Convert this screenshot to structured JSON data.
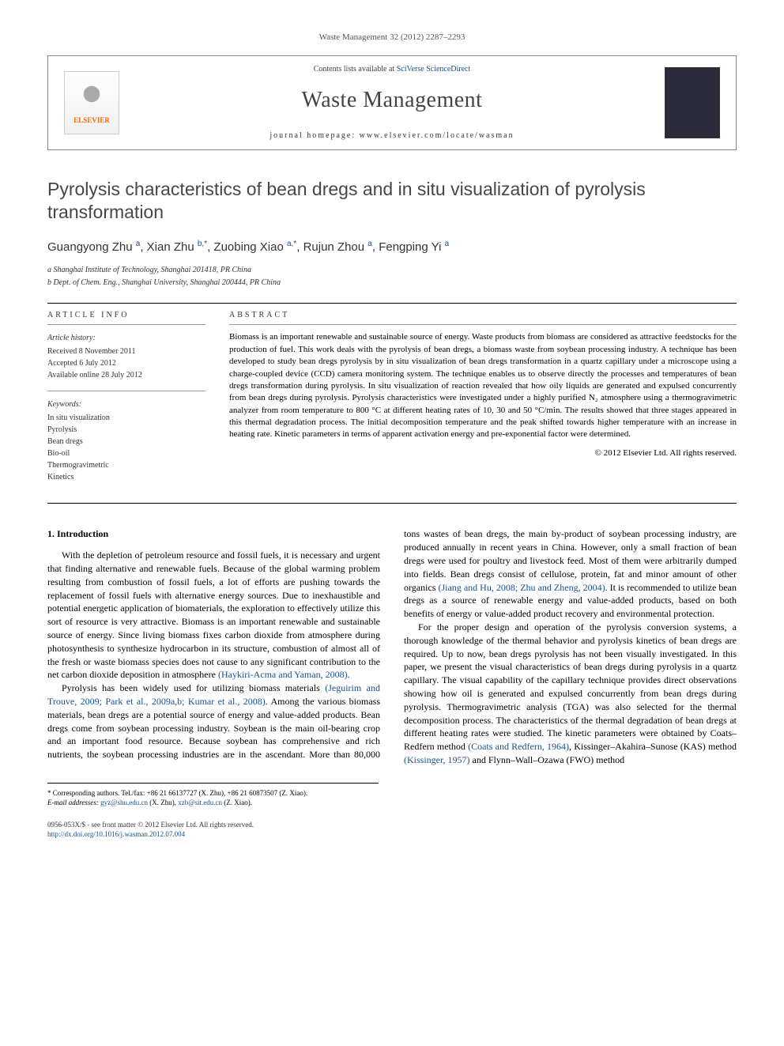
{
  "journal_ref": "Waste Management 32 (2012) 2287–2293",
  "header": {
    "publisher_name": "ELSEVIER",
    "contents_line_prefix": "Contents lists available at ",
    "contents_link": "SciVerse ScienceDirect",
    "journal_name": "Waste Management",
    "homepage_prefix": "journal homepage: ",
    "homepage_url": "www.elsevier.com/locate/wasman"
  },
  "title": "Pyrolysis characteristics of bean dregs and in situ visualization of pyrolysis transformation",
  "authors_html": "Guangyong Zhu <sup>a</sup>, Xian Zhu <sup>b,*</sup>, Zuobing Xiao <sup>a,*</sup>, Rujun Zhou <sup>a</sup>, Fengping Yi <sup>a</sup>",
  "affiliations": [
    "a Shanghai Institute of Technology, Shanghai 201418, PR China",
    "b Dept. of Chem. Eng., Shanghai University, Shanghai 200444, PR China"
  ],
  "article_info": {
    "heading": "ARTICLE INFO",
    "history_label": "Article history:",
    "history": [
      "Received 8 November 2011",
      "Accepted 6 July 2012",
      "Available online 28 July 2012"
    ],
    "keywords_label": "Keywords:",
    "keywords": [
      "In situ visualization",
      "Pyrolysis",
      "Bean dregs",
      "Bio-oil",
      "Thermogravimetric",
      "Kinetics"
    ]
  },
  "abstract": {
    "heading": "ABSTRACT",
    "text": "Biomass is an important renewable and sustainable source of energy. Waste products from biomass are considered as attractive feedstocks for the production of fuel. This work deals with the pyrolysis of bean dregs, a biomass waste from soybean processing industry. A technique has been developed to study bean dregs pyrolysis by in situ visualization of bean dregs transformation in a quartz capillary under a microscope using a charge-coupled device (CCD) camera monitoring system. The technique enables us to observe directly the processes and temperatures of bean dregs transformation during pyrolysis. In situ visualization of reaction revealed that how oily liquids are generated and expulsed concurrently from bean dregs during pyrolysis. Pyrolysis characteristics were investigated under a highly purified N₂ atmosphere using a thermogravimetric analyzer from room temperature to 800 °C at different heating rates of 10, 30 and 50 °C/min. The results showed that three stages appeared in this thermal degradation process. The initial decomposition temperature and the peak shifted towards higher temperature with an increase in heating rate. Kinetic parameters in terms of apparent activation energy and pre-exponential factor were determined.",
    "copyright": "© 2012 Elsevier Ltd. All rights reserved."
  },
  "body": {
    "section1_heading": "1. Introduction",
    "para1": "With the depletion of petroleum resource and fossil fuels, it is necessary and urgent that finding alternative and renewable fuels. Because of the global warming problem resulting from combustion of fossil fuels, a lot of efforts are pushing towards the replacement of fossil fuels with alternative energy sources. Due to inexhaustible and potential energetic application of biomaterials, the exploration to effectively utilize this sort of resource is very attractive. Biomass is an important renewable and sustainable source of energy. Since living biomass fixes carbon dioxide from atmosphere during photosynthesis to synthesize hydrocarbon in its structure, combustion of almost all of the fresh or waste biomass species does not cause to any significant contribution to the net carbon dioxide deposition in atmosphere ",
    "para1_cite": "(Haykiri-Acma and Yaman, 2008)",
    "para1_end": ".",
    "para2_a": "Pyrolysis has been widely used for utilizing biomass materials ",
    "para2_cite": "(Jeguirim and Trouve, 2009; Park et al., 2009a,b; Kumar et al., 2008)",
    "para2_b": ". Among the various biomass materials, bean dregs are a potential source of energy and value-added products. Bean dregs come from soybean processing industry. Soybean is the main oil-bearing crop and an important food resource. Because soybean has comprehensive and rich nutrients, the soybean processing industries are in the ascendant. More than 80,000 tons wastes of bean dregs, the main by-product of soybean processing industry, are produced annually in recent years in China. However, only a small fraction of bean dregs were used for poultry and livestock feed. Most of them were arbitrarily dumped into fields. Bean dregs consist of cellulose, protein, fat and minor amount of other organics ",
    "para2_cite2": "(Jiang and Hu, 2008; Zhu and Zheng, 2004)",
    "para2_c": ". It is recommended to utilize bean dregs as a source of renewable energy and value-added products, based on both benefits of energy or value-added product recovery and environmental protection.",
    "para3_a": "For the proper design and operation of the pyrolysis conversion systems, a thorough knowledge of the thermal behavior and pyrolysis kinetics of bean dregs are required. Up to now, bean dregs pyrolysis has not been visually investigated. In this paper, we present the visual characteristics of bean dregs during pyrolysis in a quartz capillary. The visual capability of the capillary technique provides direct observations showing how oil is generated and expulsed concurrently from bean dregs during pyrolysis. Thermogravimetric analysis (TGA) was also selected for the thermal decomposition process. The characteristics of the thermal degradation of bean dregs at different heating rates were studied. The kinetic parameters were obtained by Coats–Redfern method ",
    "para3_cite1": "(Coats and Redfern, 1964)",
    "para3_b": ", Kissinger–Akahira–Sunose (KAS) method ",
    "para3_cite2": "(Kissinger, 1957)",
    "para3_c": " and Flynn–Wall–Ozawa (FWO) method"
  },
  "footnotes": {
    "corr": "* Corresponding authors. Tel./fax: +86 21 66137727 (X. Zhu), +86 21 60873507 (Z. Xiao).",
    "email_label": "E-mail addresses: ",
    "email1": "gyz@shu.edu.cn",
    "email1_who": " (X. Zhu), ",
    "email2": "xzb@sit.edu.cn",
    "email2_who": " (Z. Xiao)."
  },
  "footer": {
    "line1": "0956-053X/$ - see front matter © 2012 Elsevier Ltd. All rights reserved.",
    "doi": "http://dx.doi.org/10.1016/j.wasman.2012.07.004"
  },
  "colors": {
    "link": "#1a4f8b",
    "title_gray": "#474747",
    "orange": "#ff6600"
  }
}
